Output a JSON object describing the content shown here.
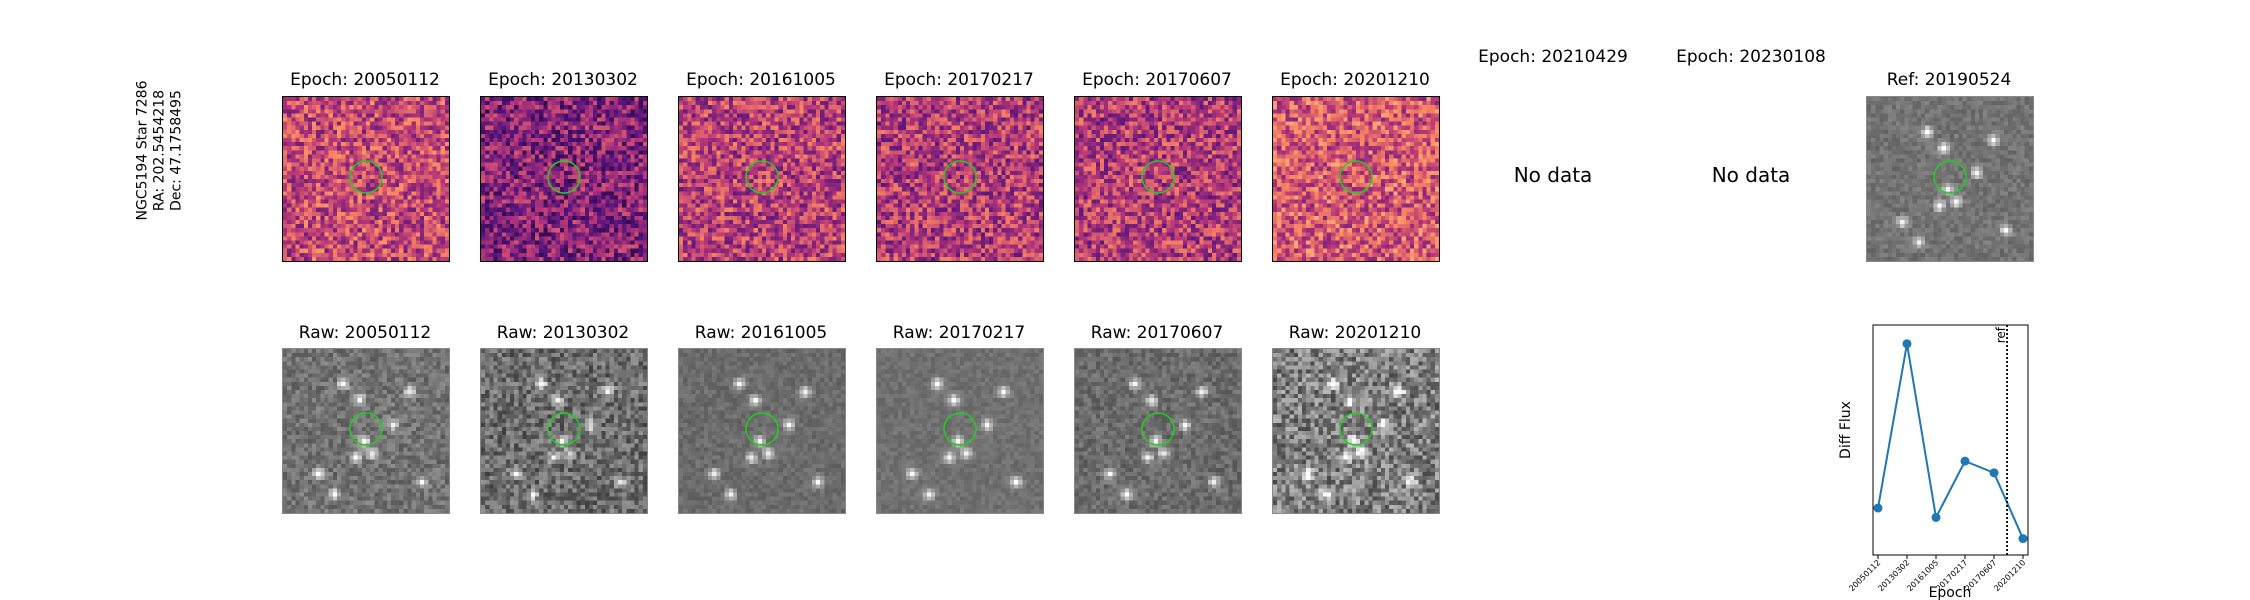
{
  "star_info": [
    "NGC5194 Star 7286",
    "RA: 202.5454218",
    "Dec: 47.1758495"
  ],
  "diff_titles": [
    "Epoch: 20050112",
    "Epoch: 20130302",
    "Epoch: 20161005",
    "Epoch: 20170217",
    "Epoch: 20170607",
    "Epoch: 20201210"
  ],
  "missing_titles": [
    "Epoch: 20210429",
    "Epoch: 20230108"
  ],
  "no_data_text": "No data",
  "ref_title": "Ref: 20190524",
  "raw_titles": [
    "Raw: 20050112",
    "Raw: 20130302",
    "Raw: 20161005",
    "Raw: 20170217",
    "Raw: 20170607",
    "Raw: 20201210"
  ],
  "colors": {
    "aperture": "#22cc22",
    "series": "#1f77b4",
    "ref_line": "#000000"
  },
  "chart_data": {
    "type": "line",
    "title": "",
    "xlabel": "Epoch",
    "ylabel": "Diff Flux",
    "categories": [
      "20050112",
      "20130302",
      "20161005",
      "20170217",
      "20170607",
      "20201210"
    ],
    "series": [
      {
        "values": [
          0.3,
          1.0,
          0.26,
          0.5,
          0.45,
          0.17
        ]
      }
    ],
    "ylim": [
      0.1,
      1.08
    ],
    "ref_marker": {
      "label": "ref",
      "position_between": [
        "20170607",
        "20201210"
      ],
      "fraction": 0.45
    },
    "y_ticks_shown": false,
    "grid": false
  }
}
